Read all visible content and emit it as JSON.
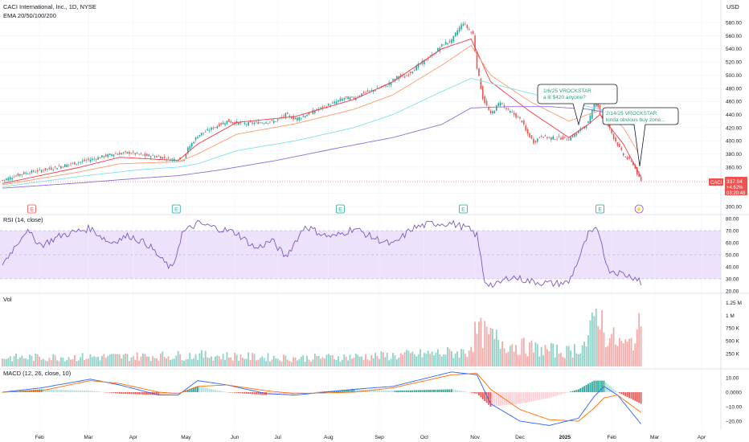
{
  "header": {
    "title": "CACI International, Inc., 1D, NYSE",
    "indicator": "EMA 20/50/100/200",
    "currency": "USD"
  },
  "price_label": {
    "symbol": "CACI",
    "price": "337.84",
    "change": "+4.62%",
    "countdown": "03:20:48"
  },
  "colors": {
    "up": "#26a69a",
    "down": "#ef5350",
    "ema20": "#f23645",
    "ema50": "#ff9b66",
    "ema100": "#7fe0f0",
    "ema200": "#8e6fd8",
    "rsi": "#7e57c2",
    "rsi_band": "#ede2fb",
    "macd": "#2962ff",
    "signal": "#ff6d00",
    "annotation_text": "#2e9e74"
  },
  "annotations": [
    {
      "text1": "1/6/25 VROCKSTAR",
      "text2": "a lil $420 anyone?"
    },
    {
      "text1": "2/14/25 VROCKSTAR",
      "text2": "kinda obvious buy zone..."
    }
  ],
  "event_badges": [
    {
      "label": "E",
      "type": "earnings-red"
    },
    {
      "label": "E",
      "type": "earnings"
    },
    {
      "label": "E",
      "type": "earnings"
    },
    {
      "label": "E",
      "type": "earnings"
    },
    {
      "label": "E",
      "type": "earnings"
    },
    {
      "label": "⚡",
      "type": "split"
    }
  ],
  "panes": {
    "rsi_title": "RSI (14, close)",
    "vol_title": "Vol",
    "macd_title": "MACD (12, 26, close, 10)"
  },
  "chart_data": [
    {
      "type": "candlestick",
      "title": "CACI International, Inc., 1D, NYSE",
      "ylim": [
        300,
        590
      ],
      "yticks": [
        "580.00",
        "560.00",
        "540.00",
        "520.00",
        "500.00",
        "480.00",
        "460.00",
        "440.00",
        "420.00",
        "400.00",
        "380.00",
        "360.00",
        "340.00",
        "320.00",
        "300.00"
      ],
      "xticks": [
        "Feb",
        "Mar",
        "Apr",
        "May",
        "Jun",
        "Jul",
        "Aug",
        "Sep",
        "Oct",
        "Nov",
        "Dec",
        "2025",
        "Feb",
        "Mar",
        "Apr"
      ],
      "close_anchors": [
        [
          0,
          340
        ],
        [
          10,
          350
        ],
        [
          25,
          358
        ],
        [
          40,
          368
        ],
        [
          50,
          375
        ],
        [
          57,
          380
        ],
        [
          65,
          382
        ],
        [
          72,
          378
        ],
        [
          80,
          376
        ],
        [
          86,
          372
        ],
        [
          93,
          372
        ],
        [
          95,
          388
        ],
        [
          100,
          408
        ],
        [
          108,
          420
        ],
        [
          115,
          430
        ],
        [
          118,
          428
        ],
        [
          125,
          426
        ],
        [
          132,
          428
        ],
        [
          140,
          430
        ],
        [
          145,
          440
        ],
        [
          150,
          433
        ],
        [
          156,
          440
        ],
        [
          160,
          446
        ],
        [
          170,
          458
        ],
        [
          175,
          465
        ],
        [
          180,
          465
        ],
        [
          185,
          473
        ],
        [
          191,
          478
        ],
        [
          197,
          485
        ],
        [
          203,
          499
        ],
        [
          206,
          497
        ],
        [
          213,
          515
        ],
        [
          220,
          530
        ],
        [
          226,
          548
        ],
        [
          230,
          552
        ],
        [
          233,
          568
        ],
        [
          236,
          580
        ],
        [
          238,
          572
        ],
        [
          241,
          562
        ],
        [
          243,
          512
        ],
        [
          246,
          465
        ],
        [
          250,
          440
        ],
        [
          255,
          460
        ],
        [
          258,
          448
        ],
        [
          262,
          440
        ],
        [
          266,
          430
        ],
        [
          268,
          415
        ],
        [
          272,
          398
        ],
        [
          276,
          408
        ],
        [
          280,
          404
        ],
        [
          285,
          405
        ],
        [
          290,
          403
        ],
        [
          295,
          414
        ],
        [
          300,
          428
        ],
        [
          302,
          445
        ],
        [
          304,
          465
        ],
        [
          306,
          440
        ],
        [
          310,
          425
        ],
        [
          313,
          405
        ],
        [
          318,
          378
        ],
        [
          323,
          365
        ],
        [
          326,
          343
        ],
        [
          327,
          338
        ]
      ],
      "ema": [
        {
          "name": "EMA 20",
          "anchors": [
            [
              0,
              335
            ],
            [
              40,
              360
            ],
            [
              60,
              375
            ],
            [
              90,
              370
            ],
            [
              100,
              395
            ],
            [
              120,
              428
            ],
            [
              150,
              437
            ],
            [
              180,
              463
            ],
            [
              200,
              490
            ],
            [
              225,
              540
            ],
            [
              240,
              555
            ],
            [
              250,
              490
            ],
            [
              270,
              445
            ],
            [
              290,
              405
            ],
            [
              300,
              425
            ],
            [
              306,
              440
            ],
            [
              318,
              395
            ],
            [
              327,
              345
            ]
          ]
        },
        {
          "name": "EMA 50",
          "anchors": [
            [
              0,
              333
            ],
            [
              40,
              353
            ],
            [
              60,
              365
            ],
            [
              90,
              368
            ],
            [
              100,
              380
            ],
            [
              120,
              410
            ],
            [
              150,
              426
            ],
            [
              180,
              448
            ],
            [
              200,
              470
            ],
            [
              225,
              515
            ],
            [
              240,
              545
            ],
            [
              250,
              500
            ],
            [
              270,
              460
            ],
            [
              290,
              430
            ],
            [
              300,
              440
            ],
            [
              308,
              448
            ],
            [
              318,
              420
            ],
            [
              327,
              375
            ]
          ]
        },
        {
          "name": "EMA 100",
          "anchors": [
            [
              0,
              330
            ],
            [
              40,
              346
            ],
            [
              70,
              356
            ],
            [
              90,
              360
            ],
            [
              100,
              365
            ],
            [
              120,
              385
            ],
            [
              150,
              400
            ],
            [
              180,
              420
            ],
            [
              200,
              440
            ],
            [
              225,
              475
            ],
            [
              240,
              495
            ],
            [
              260,
              480
            ],
            [
              280,
              465
            ],
            [
              300,
              452
            ],
            [
              310,
              445
            ],
            [
              320,
              430
            ],
            [
              327,
              415
            ]
          ]
        },
        {
          "name": "EMA 200",
          "anchors": [
            [
              0,
              328
            ],
            [
              40,
              336
            ],
            [
              70,
              343
            ],
            [
              90,
              347
            ],
            [
              110,
              355
            ],
            [
              140,
              370
            ],
            [
              170,
              388
            ],
            [
              200,
              405
            ],
            [
              225,
              425
            ],
            [
              240,
              450
            ],
            [
              260,
              452
            ],
            [
              280,
              452
            ],
            [
              300,
              448
            ],
            [
              315,
              440
            ],
            [
              327,
              432
            ]
          ]
        }
      ]
    },
    {
      "type": "line",
      "title": "RSI (14, close)",
      "ylim": [
        20,
        80
      ],
      "yticks": [
        "80.00",
        "70.00",
        "60.00",
        "50.00",
        "40.00",
        "30.00",
        "20.00"
      ],
      "band": [
        30,
        70
      ],
      "anchors": [
        [
          0,
          42
        ],
        [
          12,
          70
        ],
        [
          20,
          58
        ],
        [
          30,
          66
        ],
        [
          45,
          72
        ],
        [
          55,
          60
        ],
        [
          65,
          66
        ],
        [
          75,
          58
        ],
        [
          82,
          45
        ],
        [
          87,
          38
        ],
        [
          92,
          68
        ],
        [
          100,
          76
        ],
        [
          110,
          72
        ],
        [
          120,
          68
        ],
        [
          130,
          55
        ],
        [
          138,
          62
        ],
        [
          145,
          48
        ],
        [
          155,
          74
        ],
        [
          165,
          66
        ],
        [
          170,
          65
        ],
        [
          180,
          72
        ],
        [
          190,
          64
        ],
        [
          200,
          58
        ],
        [
          210,
          72
        ],
        [
          220,
          76
        ],
        [
          230,
          76
        ],
        [
          238,
          72
        ],
        [
          243,
          66
        ],
        [
          247,
          28
        ],
        [
          252,
          24
        ],
        [
          260,
          32
        ],
        [
          270,
          28
        ],
        [
          282,
          26
        ],
        [
          290,
          27
        ],
        [
          296,
          50
        ],
        [
          300,
          67
        ],
        [
          304,
          70
        ],
        [
          306,
          66
        ],
        [
          310,
          38
        ],
        [
          318,
          34
        ],
        [
          326,
          30
        ],
        [
          327,
          24
        ]
      ]
    },
    {
      "type": "bar",
      "title": "Vol",
      "ylim": [
        0,
        1350000
      ],
      "yticks": [
        "1.25 M",
        "1 M",
        "750 K",
        "500 K",
        "250 K"
      ],
      "anchors": [
        [
          0,
          180000
        ],
        [
          60,
          200000
        ],
        [
          100,
          230000
        ],
        [
          150,
          170000
        ],
        [
          200,
          220000
        ],
        [
          238,
          300000
        ],
        [
          243,
          720000
        ],
        [
          250,
          600000
        ],
        [
          260,
          450000
        ],
        [
          275,
          350000
        ],
        [
          290,
          300000
        ],
        [
          300,
          500000
        ],
        [
          305,
          1300000
        ],
        [
          308,
          700000
        ],
        [
          315,
          500000
        ],
        [
          320,
          420000
        ],
        [
          327,
          800000
        ]
      ]
    },
    {
      "type": "line",
      "title": "MACD (12, 26, close, 10)",
      "ylim": [
        -26,
        15
      ],
      "yticks": [
        "10.00",
        "0.0000",
        "−10.00",
        "−20.00"
      ],
      "series": [
        {
          "name": "MACD",
          "anchors": [
            [
              0,
              0
            ],
            [
              20,
              3
            ],
            [
              45,
              9
            ],
            [
              60,
              5
            ],
            [
              80,
              -2
            ],
            [
              90,
              -2
            ],
            [
              100,
              8
            ],
            [
              115,
              5
            ],
            [
              135,
              -1
            ],
            [
              150,
              -2
            ],
            [
              180,
              2
            ],
            [
              200,
              4
            ],
            [
              230,
              14
            ],
            [
              243,
              12
            ],
            [
              250,
              -8
            ],
            [
              265,
              -20
            ],
            [
              280,
              -23
            ],
            [
              295,
              -18
            ],
            [
              303,
              -3
            ],
            [
              308,
              4
            ],
            [
              315,
              -2
            ],
            [
              327,
              -22
            ]
          ]
        },
        {
          "name": "Signal",
          "anchors": [
            [
              0,
              0
            ],
            [
              20,
              1
            ],
            [
              45,
              8
            ],
            [
              60,
              6
            ],
            [
              80,
              0
            ],
            [
              90,
              -1
            ],
            [
              100,
              4
            ],
            [
              115,
              5
            ],
            [
              135,
              1
            ],
            [
              150,
              -1
            ],
            [
              180,
              0
            ],
            [
              200,
              3
            ],
            [
              230,
              12
            ],
            [
              243,
              13
            ],
            [
              250,
              2
            ],
            [
              265,
              -12
            ],
            [
              280,
              -19
            ],
            [
              295,
              -20
            ],
            [
              303,
              -11
            ],
            [
              308,
              -4
            ],
            [
              315,
              -2
            ],
            [
              327,
              -14
            ]
          ]
        }
      ]
    }
  ]
}
